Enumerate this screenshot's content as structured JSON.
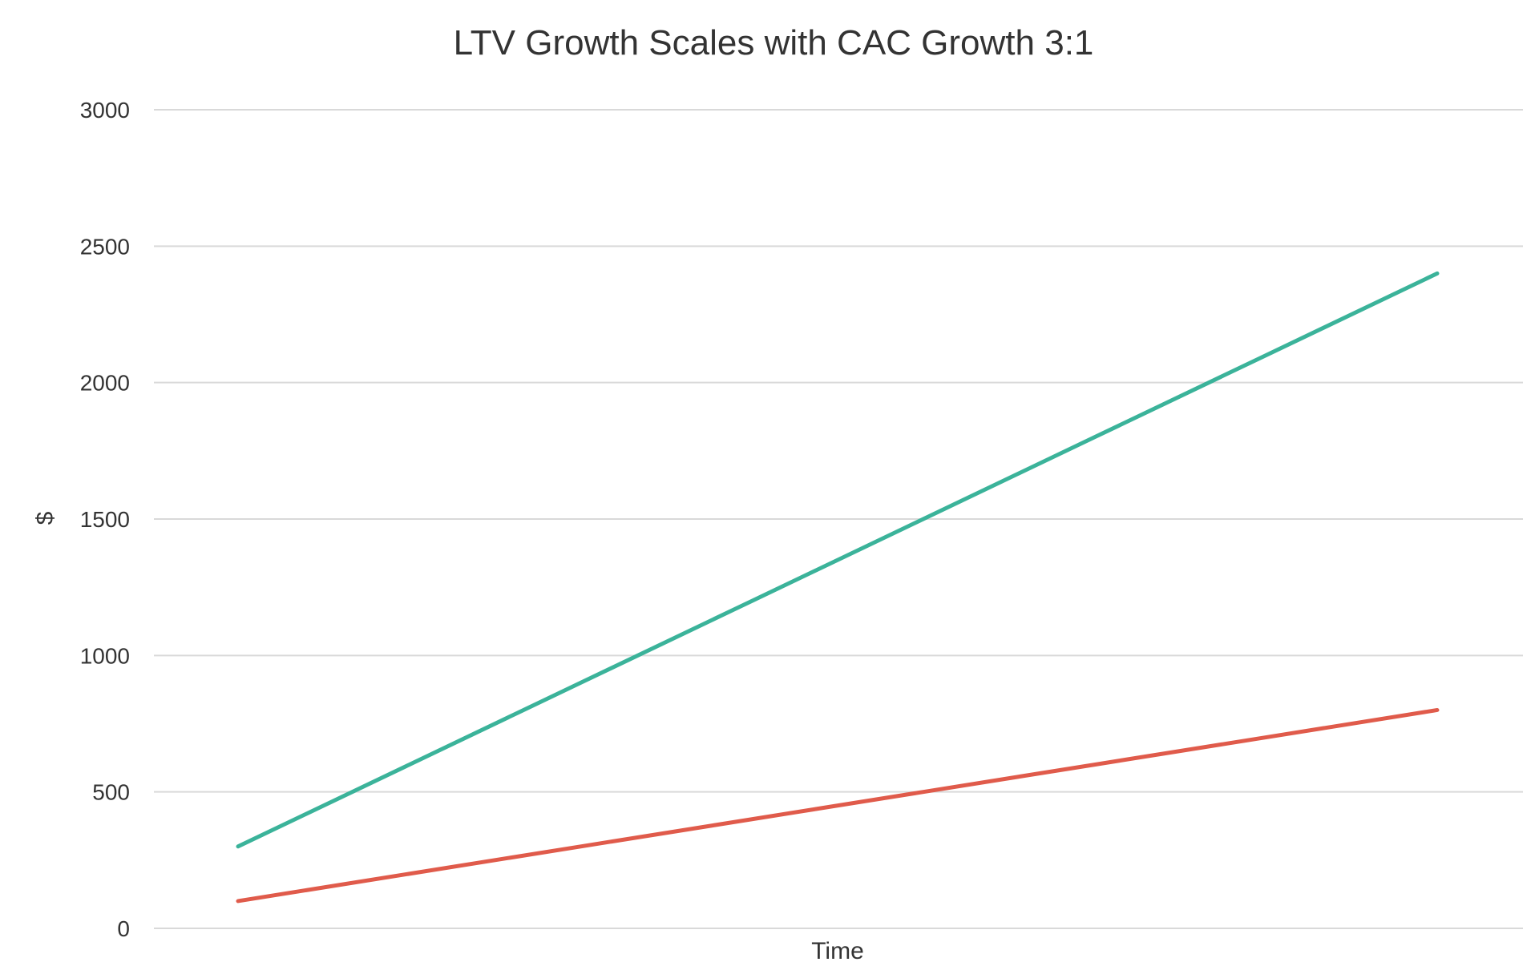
{
  "chart_data": {
    "type": "line",
    "title": "LTV Growth Scales with CAC Growth 3:1",
    "xlabel": "Time",
    "ylabel": "$",
    "ylim": [
      0,
      3000
    ],
    "yticks": [
      0,
      500,
      1000,
      1500,
      2000,
      2500,
      3000
    ],
    "grid": true,
    "legend": "none",
    "x": [
      1,
      2,
      3,
      4,
      5,
      6,
      7,
      8
    ],
    "series": [
      {
        "color": "#3bb39a",
        "values": [
          300,
          600,
          900,
          1200,
          1500,
          1800,
          2100,
          2400
        ]
      },
      {
        "color": "#e05b4b",
        "values": [
          100,
          200,
          300,
          400,
          500,
          600,
          700,
          800
        ]
      }
    ]
  }
}
